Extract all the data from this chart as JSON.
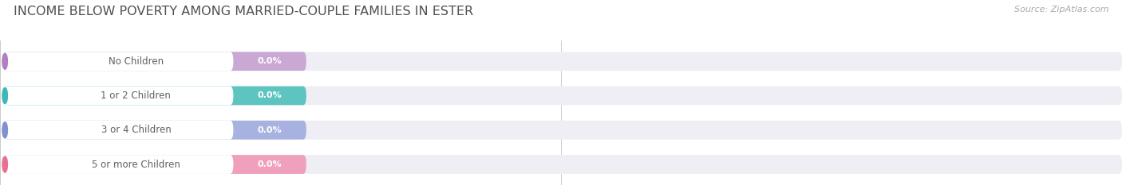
{
  "title": "INCOME BELOW POVERTY AMONG MARRIED-COUPLE FAMILIES IN ESTER",
  "source": "Source: ZipAtlas.com",
  "categories": [
    "No Children",
    "1 or 2 Children",
    "3 or 4 Children",
    "5 or more Children"
  ],
  "values": [
    0.0,
    0.0,
    0.0,
    0.0
  ],
  "bar_colors": [
    "#c9a8d4",
    "#5ec4c0",
    "#a8b2e0",
    "#f0a0bc"
  ],
  "dot_colors": [
    "#b07fc0",
    "#3db8b5",
    "#8090d0",
    "#e87090"
  ],
  "bg_bar_color": "#eeeef4",
  "title_color": "#505050",
  "value_text_color": "#ffffff",
  "label_text_color": "#606060",
  "axis_label_color": "#aaaaaa",
  "source_color": "#aaaaaa",
  "figsize": [
    14.06,
    2.33
  ],
  "dpi": 100
}
